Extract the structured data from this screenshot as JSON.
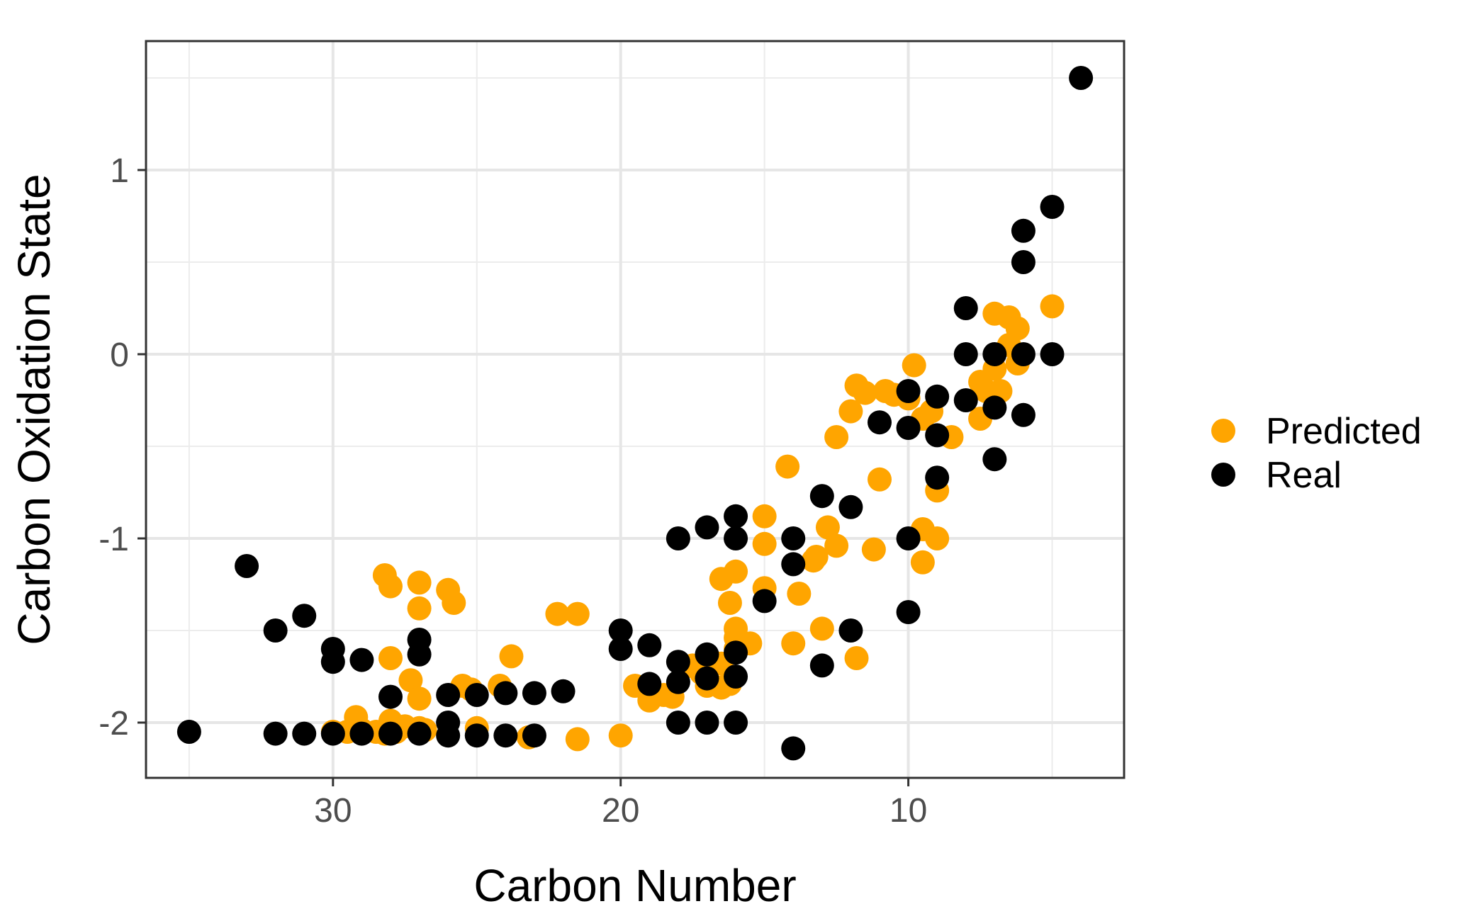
{
  "chart_data": {
    "type": "scatter",
    "xlabel": "Carbon Number",
    "ylabel": "Carbon Oxidation State",
    "x_reversed": true,
    "xlim": [
      36.5,
      2.5
    ],
    "ylim": [
      -2.3,
      1.7
    ],
    "x_ticks": [
      30,
      20,
      10
    ],
    "x_tick_labels": [
      "30",
      "20",
      "10"
    ],
    "y_ticks": [
      1,
      0,
      -1,
      -2
    ],
    "y_tick_labels": [
      "1",
      "0",
      "-1",
      "-2"
    ],
    "grid": true,
    "legend_position": "right",
    "series": [
      {
        "name": "Predicted",
        "color": "#FFA500",
        "points": [
          [
            30,
            -2.05
          ],
          [
            29.5,
            -2.05
          ],
          [
            29.2,
            -1.97
          ],
          [
            29,
            -2.04
          ],
          [
            28.5,
            -2.05
          ],
          [
            28.2,
            -2.06
          ],
          [
            28,
            -1.65
          ],
          [
            28,
            -1.99
          ],
          [
            27.8,
            -2.05
          ],
          [
            28.2,
            -1.2
          ],
          [
            28,
            -1.26
          ],
          [
            27.5,
            -2.02
          ],
          [
            27.3,
            -1.77
          ],
          [
            27,
            -1.24
          ],
          [
            27,
            -1.38
          ],
          [
            27,
            -1.87
          ],
          [
            27,
            -2.03
          ],
          [
            26.8,
            -2.04
          ],
          [
            26,
            -1.28
          ],
          [
            25.8,
            -1.35
          ],
          [
            25.5,
            -1.8
          ],
          [
            25.2,
            -1.82
          ],
          [
            25,
            -2.03
          ],
          [
            24.2,
            -1.8
          ],
          [
            23.8,
            -1.64
          ],
          [
            23.2,
            -2.08
          ],
          [
            22.2,
            -1.41
          ],
          [
            21.5,
            -1.41
          ],
          [
            21.5,
            -2.09
          ],
          [
            20,
            -2.07
          ],
          [
            19.5,
            -1.8
          ],
          [
            19,
            -1.88
          ],
          [
            18.5,
            -1.85
          ],
          [
            18.2,
            -1.86
          ],
          [
            17.8,
            -1.7
          ],
          [
            17.5,
            -1.69
          ],
          [
            17.2,
            -1.73
          ],
          [
            17,
            -1.8
          ],
          [
            16.8,
            -1.67
          ],
          [
            16.5,
            -1.68
          ],
          [
            16.5,
            -1.81
          ],
          [
            16.2,
            -1.79
          ],
          [
            16,
            -1.54
          ],
          [
            16,
            -1.6
          ],
          [
            16,
            -1.49
          ],
          [
            16.2,
            -1.35
          ],
          [
            16.5,
            -1.22
          ],
          [
            16,
            -1.18
          ],
          [
            15.5,
            -1.57
          ],
          [
            15,
            -1.27
          ],
          [
            15,
            -0.88
          ],
          [
            15,
            -1.03
          ],
          [
            14.2,
            -0.61
          ],
          [
            14,
            -1.57
          ],
          [
            13.8,
            -1.3
          ],
          [
            13.3,
            -1.12
          ],
          [
            13.2,
            -1.1
          ],
          [
            13,
            -1.49
          ],
          [
            12.8,
            -0.94
          ],
          [
            12.5,
            -1.04
          ],
          [
            12.5,
            -0.45
          ],
          [
            12,
            -0.31
          ],
          [
            11.8,
            -0.17
          ],
          [
            11.8,
            -1.65
          ],
          [
            11.5,
            -0.21
          ],
          [
            11.2,
            -1.06
          ],
          [
            11,
            -0.68
          ],
          [
            10.8,
            -0.2
          ],
          [
            10.5,
            -0.22
          ],
          [
            10,
            -0.24
          ],
          [
            9.8,
            -0.06
          ],
          [
            9.5,
            -0.35
          ],
          [
            9.5,
            -0.95
          ],
          [
            9.5,
            -1.13
          ],
          [
            9.2,
            -0.31
          ],
          [
            9,
            -0.74
          ],
          [
            9,
            -1.0
          ],
          [
            8.5,
            -0.45
          ],
          [
            7.5,
            -0.35
          ],
          [
            7.5,
            -0.15
          ],
          [
            7.3,
            -0.2
          ],
          [
            7,
            0.22
          ],
          [
            7,
            -0.08
          ],
          [
            6.8,
            -0.2
          ],
          [
            6.5,
            0.2
          ],
          [
            6.5,
            0.05
          ],
          [
            6.2,
            0.14
          ],
          [
            6.2,
            -0.05
          ],
          [
            5,
            0.26
          ]
        ]
      },
      {
        "name": "Real",
        "color": "#000000",
        "points": [
          [
            35,
            -2.05
          ],
          [
            33,
            -1.15
          ],
          [
            32,
            -1.5
          ],
          [
            32,
            -2.06
          ],
          [
            31,
            -1.42
          ],
          [
            31,
            -2.06
          ],
          [
            30,
            -1.6
          ],
          [
            30,
            -1.67
          ],
          [
            30,
            -2.06
          ],
          [
            29,
            -1.66
          ],
          [
            29,
            -2.06
          ],
          [
            28,
            -1.86
          ],
          [
            28,
            -2.06
          ],
          [
            27,
            -1.55
          ],
          [
            27,
            -1.63
          ],
          [
            27,
            -2.06
          ],
          [
            26,
            -1.85
          ],
          [
            26,
            -2.0
          ],
          [
            26,
            -2.07
          ],
          [
            25,
            -1.85
          ],
          [
            25,
            -2.07
          ],
          [
            24,
            -1.84
          ],
          [
            24,
            -2.07
          ],
          [
            23,
            -1.84
          ],
          [
            23,
            -2.07
          ],
          [
            22,
            -1.83
          ],
          [
            20,
            -1.5
          ],
          [
            20,
            -1.6
          ],
          [
            19,
            -1.58
          ],
          [
            19,
            -1.79
          ],
          [
            18,
            -1.0
          ],
          [
            18,
            -1.67
          ],
          [
            18,
            -1.78
          ],
          [
            18,
            -2.0
          ],
          [
            17,
            -0.94
          ],
          [
            17,
            -1.63
          ],
          [
            17,
            -1.76
          ],
          [
            17,
            -2.0
          ],
          [
            16,
            -0.88
          ],
          [
            16,
            -1.0
          ],
          [
            16,
            -1.62
          ],
          [
            16,
            -1.75
          ],
          [
            16,
            -2.0
          ],
          [
            15,
            -1.34
          ],
          [
            14,
            -1.0
          ],
          [
            14,
            -1.14
          ],
          [
            14,
            -2.14
          ],
          [
            13,
            -0.77
          ],
          [
            13,
            -1.69
          ],
          [
            12,
            -0.83
          ],
          [
            12,
            -1.5
          ],
          [
            11,
            -0.37
          ],
          [
            10,
            -0.2
          ],
          [
            10,
            -0.4
          ],
          [
            10,
            -1.0
          ],
          [
            10,
            -1.4
          ],
          [
            9,
            -0.23
          ],
          [
            9,
            -0.44
          ],
          [
            9,
            -0.67
          ],
          [
            8,
            0.25
          ],
          [
            8,
            0.0
          ],
          [
            8,
            -0.25
          ],
          [
            7,
            0.0
          ],
          [
            7,
            -0.29
          ],
          [
            7,
            -0.57
          ],
          [
            6,
            0.67
          ],
          [
            6,
            0.5
          ],
          [
            6,
            0.0
          ],
          [
            6,
            -0.33
          ],
          [
            5,
            0.8
          ],
          [
            5,
            0.0
          ],
          [
            4,
            1.5
          ]
        ]
      }
    ]
  }
}
